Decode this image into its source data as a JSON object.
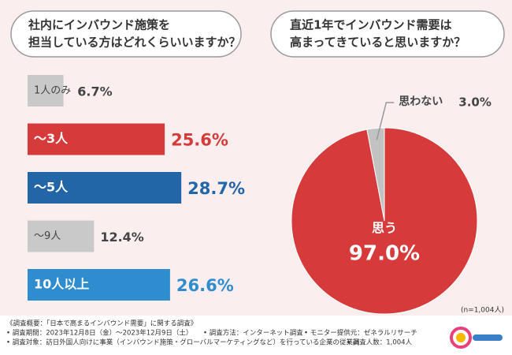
{
  "chart_data": [
    {
      "type": "hbar",
      "title": [
        "社内にインバウンド施策を",
        "担当している方はどれくらいいますか？"
      ],
      "categories": [
        "1人のみ",
        "〜3人",
        "〜5人",
        "〜9人",
        "10人以上"
      ],
      "values": [
        6.7,
        25.6,
        28.7,
        12.4,
        26.6
      ],
      "value_labels": [
        "6.7%",
        "25.6%",
        "28.7%",
        "12.4%",
        "26.6%"
      ],
      "colors": [
        "#c9c9c9",
        "#d63a3a",
        "#2266a8",
        "#c9c9c9",
        "#2e8ccf"
      ]
    },
    {
      "type": "pie",
      "title": [
        "直近1年でインバウンド需要は",
        "高まってきていると思いますか？"
      ],
      "categories": [
        "思う",
        "思わない"
      ],
      "values": [
        97.0,
        3.0
      ],
      "value_labels": [
        "97.0%",
        "3.0%"
      ],
      "colors": [
        "#d63a3a",
        "#c2c2c2"
      ],
      "note": "(n=1,004人)"
    }
  ],
  "footer": {
    "heading": "《調査概要：「日本で高まるインバウンド需要」に関する調査》",
    "items": [
      "• 調査期間：2023年12月8日（金）〜2023年12月9日（土）",
      "• 調査方法：インターネット調査",
      "• モニター提供元：ゼネラルリサーチ",
      "• 調査対象：訪日外国人向けに事業（インバウンド施策・グローバルマーケティングなど）を行っている企業の従業員",
      "• 調査人数：1,004人"
    ]
  }
}
